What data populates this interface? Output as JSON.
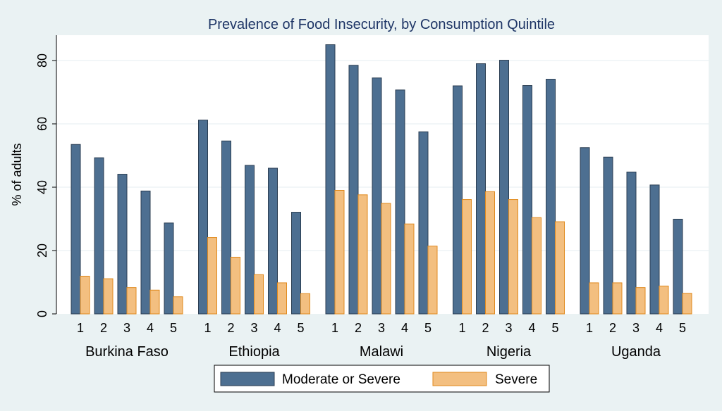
{
  "chart_data": {
    "type": "bar",
    "title": "Prevalence of Food Insecurity, by Consumption Quintile",
    "xlabel": "",
    "ylabel": "% of adults",
    "ylim": [
      0,
      88
    ],
    "yticks": [
      0,
      20,
      40,
      60,
      80
    ],
    "grid": true,
    "groups": [
      "Burkina Faso",
      "Ethiopia",
      "Malawi",
      "Nigeria",
      "Uganda"
    ],
    "categories": [
      "1",
      "2",
      "3",
      "4",
      "5"
    ],
    "series": [
      {
        "name": "Moderate or Severe",
        "color": "#4d6f91",
        "values": [
          [
            53.5,
            49.3,
            44.1,
            38.8,
            28.7
          ],
          [
            61.2,
            54.6,
            46.9,
            46.0,
            32.1
          ],
          [
            85.0,
            78.5,
            74.5,
            70.7,
            57.5
          ],
          [
            72.0,
            79.0,
            80.1,
            72.1,
            74.1
          ],
          [
            52.5,
            49.5,
            44.8,
            40.7,
            29.9
          ]
        ]
      },
      {
        "name": "Severe",
        "color": "#f3bf80",
        "values": [
          [
            11.9,
            11.1,
            8.3,
            7.5,
            5.4
          ],
          [
            24.1,
            17.9,
            12.4,
            9.8,
            6.4
          ],
          [
            39.0,
            37.6,
            34.9,
            28.4,
            21.4
          ],
          [
            36.1,
            38.6,
            36.1,
            30.4,
            29.1
          ],
          [
            9.8,
            9.8,
            8.3,
            8.8,
            6.5
          ]
        ]
      }
    ],
    "legend_position": "bottom"
  }
}
